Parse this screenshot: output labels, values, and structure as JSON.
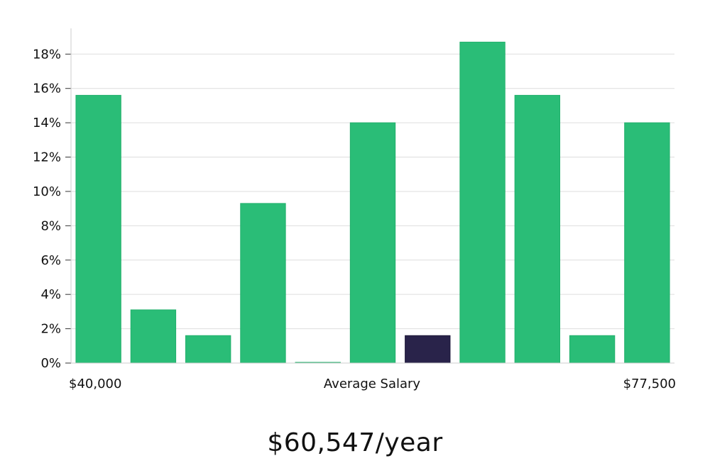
{
  "chart_data": {
    "type": "bar",
    "values": [
      15.6,
      3.1,
      1.6,
      9.3,
      0.0,
      14.0,
      1.6,
      18.7,
      15.6,
      1.6,
      14.0
    ],
    "highlight_index": 6,
    "ylim": [
      0,
      19.5
    ],
    "yticks": [
      0,
      2,
      4,
      6,
      8,
      10,
      12,
      14,
      16,
      18
    ],
    "ytick_suffix": "%",
    "x_start_label": "$40,000",
    "x_end_label": "$77,500",
    "xlabel": "Average Salary",
    "grid": true,
    "colors": {
      "bar": "#2abd77",
      "highlight": "#29234a",
      "grid": "#dddddd",
      "axis": "#cccccc"
    }
  },
  "salary_display": "$60,547/year"
}
